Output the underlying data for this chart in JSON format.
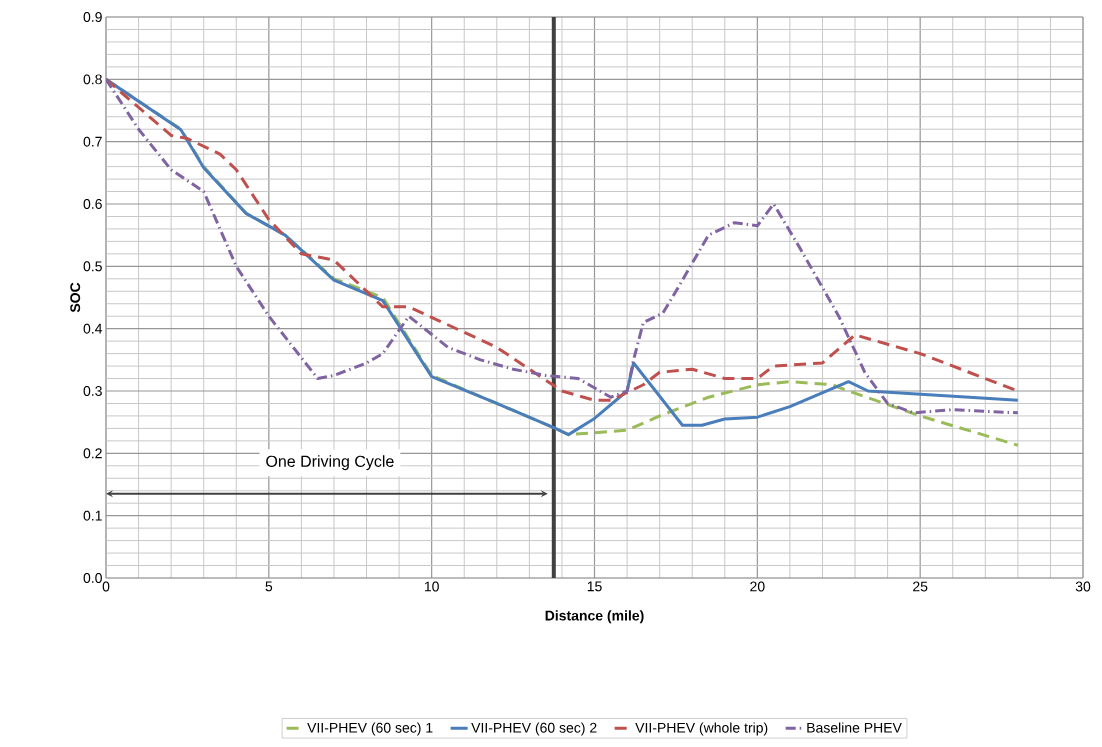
{
  "chart_data": {
    "type": "line",
    "xlabel": "Distance (mile)",
    "ylabel": "SOC",
    "xlim": [
      0,
      30
    ],
    "xticks": [
      0,
      5,
      10,
      15,
      20,
      25,
      30
    ],
    "ylim": [
      0,
      0.9
    ],
    "yticks": [
      {
        "value": 0,
        "label": "0.0"
      },
      0.1,
      0.2,
      0.3,
      0.4,
      0.5,
      0.6,
      0.7,
      0.8,
      0.9
    ],
    "grid": true,
    "legend": "bottom",
    "marker": "none",
    "ref_lines": [
      {
        "axis": "x",
        "value": 13.75,
        "color": "#404040"
      }
    ],
    "annotations": [
      "One Driving Cycle"
    ],
    "series": [
      {
        "name": "VII-PHEV (60 sec) 1",
        "color": "#9bbb59",
        "line_style": "dashed",
        "x": [
          0,
          2.3,
          3,
          4.3,
          5.5,
          7,
          8.5,
          10,
          12,
          13.8,
          14.2,
          16,
          17,
          18.5,
          20,
          21,
          22.3,
          22.8,
          25,
          28
        ],
        "values": [
          0.8,
          0.72,
          0.66,
          0.585,
          0.55,
          0.48,
          0.45,
          0.325,
          0.28,
          0.24,
          0.23,
          0.237,
          0.26,
          0.29,
          0.31,
          0.315,
          0.31,
          0.3,
          0.26,
          0.213
        ]
      },
      {
        "name": "VII-PHEV (60 sec) 2",
        "color": "#4a7ebb",
        "line_style": "solid",
        "x": [
          0,
          2.3,
          3,
          4.3,
          5.5,
          7,
          8.5,
          10,
          12,
          13.8,
          14.2,
          15,
          16,
          16.2,
          17.7,
          18.3,
          19,
          20,
          21,
          22.8,
          23.4,
          28
        ],
        "values": [
          0.8,
          0.719,
          0.658,
          0.585,
          0.55,
          0.478,
          0.445,
          0.323,
          0.28,
          0.24,
          0.23,
          0.256,
          0.3,
          0.345,
          0.245,
          0.245,
          0.255,
          0.258,
          0.275,
          0.315,
          0.3,
          0.285
        ]
      },
      {
        "name": "VII-PHEV (whole trip)",
        "color": "#c0504d",
        "line_style": "dashed",
        "x": [
          0,
          2,
          2.5,
          3.5,
          4,
          5,
          6,
          7,
          8.5,
          9.3,
          12,
          14,
          15,
          15.5,
          16.5,
          17,
          18,
          19,
          20,
          20.5,
          22,
          23,
          25,
          28
        ],
        "values": [
          0.8,
          0.71,
          0.705,
          0.68,
          0.655,
          0.575,
          0.52,
          0.51,
          0.435,
          0.435,
          0.37,
          0.3,
          0.285,
          0.285,
          0.31,
          0.33,
          0.335,
          0.32,
          0.32,
          0.34,
          0.345,
          0.39,
          0.36,
          0.3
        ]
      },
      {
        "name": "Baseline PHEV",
        "color": "#8064a2",
        "line_style": "dashdot",
        "x": [
          0,
          1,
          2,
          3,
          4,
          5,
          6.5,
          7,
          8,
          8.5,
          9.3,
          10.5,
          11.5,
          12.5,
          13.5,
          14.5,
          15.5,
          16,
          16.2,
          16.5,
          17.1,
          17.5,
          18.5,
          19.3,
          20,
          20.5,
          21.3,
          22.5,
          23.3,
          24,
          24.8,
          26,
          28
        ],
        "values": [
          0.8,
          0.72,
          0.655,
          0.62,
          0.5,
          0.42,
          0.32,
          0.325,
          0.345,
          0.36,
          0.42,
          0.37,
          0.35,
          0.335,
          0.325,
          0.32,
          0.29,
          0.3,
          0.35,
          0.41,
          0.425,
          0.46,
          0.55,
          0.57,
          0.565,
          0.6,
          0.53,
          0.42,
          0.33,
          0.28,
          0.265,
          0.27,
          0.265
        ]
      }
    ]
  }
}
